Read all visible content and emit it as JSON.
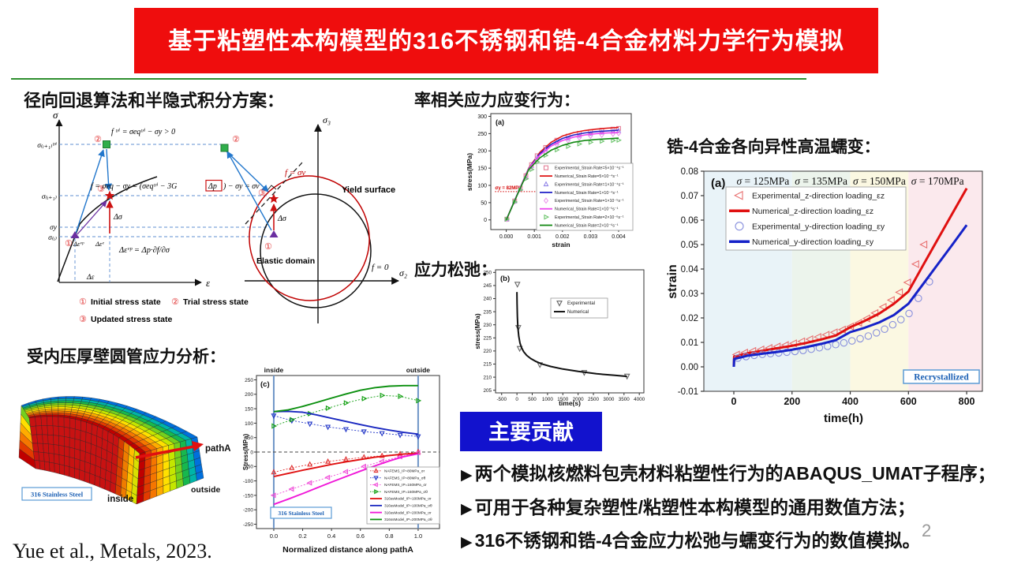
{
  "title": {
    "text": "基于粘塑性本构模型的316不锈钢和锆-4合金材料力学行为模拟"
  },
  "colors": {
    "banner_red": "#ef0d0d",
    "rule_green": "#2f8f2f",
    "contrib_blue": "#1212cd",
    "accent_red": "#cc1111",
    "accent_blue": "#2277cc",
    "accent_purple": "#6a2fa0",
    "accent_green": "#2fae4a",
    "box_blue": "#5b9bd5",
    "box_text_blue": "#1a5fb4"
  },
  "sections": {
    "s1": "径向回退算法和半隐式积分方案：",
    "s2": "受内压厚壁圆管应力分析：",
    "s3": "率相关应力应变行为：",
    "s4": "应力松弛：",
    "s5": "锆-4合金各向异性高温蠕变："
  },
  "diagram": {
    "sigma_axis": "σ",
    "eps_axis": "ε",
    "sigma_tri": "σ₍ᵢ₊₁₎ᵗʳⁱ",
    "sigma_next": "σ₍ᵢ₊₁₎",
    "sigma_yield": "σy",
    "sigma_init": "σ₍ᵢ₎",
    "f_trial": "f ᵗʳⁱ = σeqᵗʳⁱ − σy > 0",
    "f_update_a": "f = σeq − σy = (σeqᵗʳⁱ − 3G",
    "f_update_b": "Δp",
    "f_update_c": ") − σy = σv",
    "flow_rule": "Δεᵛᵖ = Δp·∂f/∂σ",
    "d_eps_vp": "Δεᵛᵖ",
    "d_eps_e": "Δεᵉ",
    "d_eps": "Δε",
    "d_sigma": "Δσ",
    "sigma3": "σ₃",
    "sigma2": "σ₂",
    "f_sv": "f = σv",
    "f_zero": "f = 0",
    "yield_surface": "Yield surface",
    "elastic_domain": "Elastic domain",
    "n1": "①",
    "n2": "②",
    "n3": "③",
    "legend1": "Initial stress state",
    "legend2": "Trial stress state",
    "legend3": "Updated stress state"
  },
  "fem": {
    "path_label": "pathA",
    "inside": "inside",
    "outside": "outside",
    "material": "316 Stainless Steel"
  },
  "contributions": {
    "banner": "主要贡献",
    "bullet_icon": "▶",
    "bullets": [
      "两个模拟核燃料包壳材料粘塑性行为的ABAQUS_UMAT子程序；",
      "可用于各种复杂塑性/粘塑性本构模型的通用数值方法；",
      "316不锈钢和锆-4合金应力松弛与蠕变行为的数值模拟。"
    ]
  },
  "citation": "Yue et al., Metals, 2023.",
  "page_number": "2",
  "chart_data": [
    {
      "id": "rate-dependent-stress-strain",
      "type": "line",
      "panel": "(a)",
      "xlabel": "strain",
      "ylabel": "stress(MPa)",
      "xlim": [
        -0.00055,
        0.00445
      ],
      "ylim": [
        -28,
        308
      ],
      "xticks": [
        0,
        0.001,
        0.002,
        0.003,
        0.004
      ],
      "xtick_labels": [
        "0.000",
        "0.001",
        "0.002",
        "0.003",
        "0.004"
      ],
      "yticks": [
        0,
        50,
        100,
        150,
        200,
        250,
        300
      ],
      "yield_annotation": {
        "label": "σy = 82MPa",
        "y": 82,
        "x0": -0.0004,
        "x1": 0.0012,
        "color": "#d40000"
      },
      "series": [
        {
          "label": "Experimental_Strain Rate=5×10⁻⁴s⁻¹",
          "kind": "marker",
          "marker": "square",
          "color": "#e48098",
          "x": [
            2e-05,
            0.0003,
            0.0005,
            0.0007,
            0.0009,
            0.0011,
            0.0014,
            0.0018,
            0.0022,
            0.0026,
            0.003,
            0.0034,
            0.0038,
            0.004
          ],
          "y": [
            2,
            55,
            92,
            128,
            160,
            186,
            210,
            231,
            243,
            251,
            256,
            260,
            263,
            265
          ]
        },
        {
          "label": "Numerical_Strain Rate=5×10⁻⁴s⁻¹",
          "kind": "line",
          "color": "#e01818",
          "x": [
            0,
            0.0004,
            0.0008,
            0.0012,
            0.0016,
            0.002,
            0.0024,
            0.0028,
            0.0032,
            0.0036,
            0.004
          ],
          "y": [
            0,
            75,
            150,
            196,
            225,
            243,
            253,
            259,
            263,
            266,
            268
          ]
        },
        {
          "label": "Experimental_Strain Rate=1×10⁻⁴s⁻¹",
          "kind": "marker",
          "marker": "triangle-up",
          "color": "#9184e8",
          "x": [
            2e-05,
            0.0003,
            0.0005,
            0.0007,
            0.0009,
            0.0011,
            0.0014,
            0.0018,
            0.0022,
            0.0026,
            0.003,
            0.0034,
            0.0038,
            0.004
          ],
          "y": [
            2,
            54,
            90,
            125,
            156,
            181,
            204,
            224,
            236,
            244,
            249,
            253,
            256,
            258
          ]
        },
        {
          "label": "Numerical_Strain Rate=1×10⁻⁴s⁻¹",
          "kind": "line",
          "color": "#2424c8",
          "x": [
            0,
            0.0004,
            0.0008,
            0.0012,
            0.0016,
            0.002,
            0.0024,
            0.0028,
            0.0032,
            0.0036,
            0.004
          ],
          "y": [
            0,
            75,
            149,
            192,
            219,
            236,
            246,
            252,
            256,
            258,
            260
          ]
        },
        {
          "label": "Experimental_Strain Rate=1×10⁻⁵s⁻¹",
          "kind": "marker",
          "marker": "diamond",
          "color": "#ec9aec",
          "x": [
            2e-05,
            0.0003,
            0.0005,
            0.0007,
            0.0009,
            0.0011,
            0.0014,
            0.0018,
            0.0022,
            0.0026,
            0.003,
            0.0034,
            0.0038,
            0.004
          ],
          "y": [
            2,
            53,
            89,
            123,
            153,
            177,
            199,
            218,
            230,
            238,
            243,
            246,
            249,
            251
          ]
        },
        {
          "label": "Numerical_Strain Rate=1×10⁻⁵s⁻¹",
          "kind": "line",
          "color": "#ee46ee",
          "x": [
            0,
            0.0004,
            0.0008,
            0.0012,
            0.0016,
            0.002,
            0.0024,
            0.0028,
            0.0032,
            0.0036,
            0.004
          ],
          "y": [
            0,
            74,
            148,
            188,
            214,
            230,
            240,
            246,
            250,
            252,
            253
          ]
        },
        {
          "label": "Experimental_Strain Rate=2×10⁻⁶s⁻¹",
          "kind": "marker",
          "marker": "triangle-right",
          "color": "#6cc46c",
          "x": [
            2e-05,
            0.0003,
            0.0005,
            0.0007,
            0.0009,
            0.0011,
            0.0014,
            0.0018,
            0.0022,
            0.0026,
            0.003,
            0.0034,
            0.0038,
            0.004
          ],
          "y": [
            2,
            52,
            87,
            119,
            146,
            168,
            187,
            203,
            213,
            220,
            225,
            228,
            230,
            231
          ]
        },
        {
          "label": "Numerical_Strain Rate=2×10⁻⁶s⁻¹",
          "kind": "line",
          "color": "#128812",
          "x": [
            0,
            0.0004,
            0.0008,
            0.0012,
            0.0016,
            0.002,
            0.0024,
            0.0028,
            0.0032,
            0.0036,
            0.004
          ],
          "y": [
            0,
            74,
            146,
            180,
            202,
            216,
            225,
            230,
            233,
            235,
            237
          ]
        }
      ]
    },
    {
      "id": "stress-relaxation",
      "type": "line",
      "panel": "(b)",
      "xlabel": "time(s)",
      "ylabel": "stress(MPa)",
      "xlim": [
        -700,
        4150
      ],
      "ylim": [
        204,
        251
      ],
      "xticks": [
        -500,
        0,
        500,
        1000,
        1500,
        2000,
        2500,
        3000,
        3500,
        4000
      ],
      "yticks": [
        205,
        210,
        215,
        220,
        225,
        230,
        235,
        240,
        245,
        250
      ],
      "series": [
        {
          "label": "Experimental",
          "kind": "marker",
          "marker": "triangle-down",
          "color": "#666666",
          "x": [
            15,
            45,
            90,
            750,
            2200,
            3600
          ],
          "y": [
            245.5,
            229,
            221,
            214.8,
            211.8,
            210.4
          ]
        },
        {
          "label": "Numerical",
          "kind": "line",
          "color": "#111111",
          "x": [
            0,
            5,
            15,
            30,
            60,
            100,
            150,
            220,
            320,
            450,
            600,
            800,
            1100,
            1500,
            2000,
            2600,
            3200,
            3600
          ],
          "y": [
            242.5,
            238,
            233,
            229,
            225.5,
            223,
            221.3,
            219.7,
            218.3,
            217.1,
            216.1,
            215.1,
            214.1,
            213.1,
            212.2,
            211.3,
            210.7,
            210.3
          ]
        }
      ]
    },
    {
      "id": "zr4-anisotropic-creep",
      "type": "line",
      "panel": "(a)",
      "xlabel": "time(h)",
      "ylabel": "strain",
      "xlim": [
        -103,
        854
      ],
      "ylim": [
        -0.01,
        0.08
      ],
      "xticks": [
        0,
        200,
        400,
        600,
        800
      ],
      "yticks": [
        -0.01,
        0,
        0.01,
        0.02,
        0.03,
        0.04,
        0.05,
        0.06,
        0.07,
        0.08
      ],
      "regions": [
        {
          "x0": -103,
          "x1": 200,
          "color": "#e9f3f8"
        },
        {
          "x0": 200,
          "x1": 400,
          "color": "#ecf4ec"
        },
        {
          "x0": 400,
          "x1": 600,
          "color": "#fbf8e2"
        },
        {
          "x0": 600,
          "x1": 854,
          "color": "#fbe9ed"
        }
      ],
      "stress_annotations": [
        "σ = 125MPa",
        "σ = 135MPa",
        "σ = 150MPa",
        "σ = 170MPa"
      ],
      "annotation_centers": [
        100,
        300,
        500,
        700
      ],
      "recrystallized_label": "Recrystallized",
      "series": [
        {
          "label": "Experimental_z-direction loading_εz",
          "kind": "marker",
          "marker": "triangle-left",
          "color": "#e87070",
          "x": [
            10,
            38,
            66,
            94,
            122,
            150,
            178,
            206,
            234,
            262,
            290,
            318,
            346,
            374,
            402,
            430,
            458,
            486,
            514,
            542,
            570,
            598,
            626,
            654
          ],
          "y": [
            0.005,
            0.0058,
            0.0065,
            0.0071,
            0.0077,
            0.0083,
            0.0089,
            0.0096,
            0.0104,
            0.0113,
            0.0122,
            0.0131,
            0.0141,
            0.0152,
            0.0165,
            0.018,
            0.0198,
            0.022,
            0.0245,
            0.0273,
            0.0305,
            0.0345,
            0.042,
            0.05
          ]
        },
        {
          "label": "Numerical_z-direction loading_εz",
          "kind": "line",
          "color": "#e01010",
          "x": [
            0,
            1,
            50,
            100,
            150,
            200,
            250,
            300,
            350,
            400,
            450,
            500,
            550,
            600,
            650,
            700,
            750,
            800
          ],
          "y": [
            0,
            0.0042,
            0.0056,
            0.0066,
            0.0076,
            0.0086,
            0.0098,
            0.0112,
            0.0128,
            0.0162,
            0.0188,
            0.0218,
            0.0258,
            0.0308,
            0.0415,
            0.052,
            0.0625,
            0.073
          ]
        },
        {
          "label": "Experimental_y-direction loading_εy",
          "kind": "marker",
          "marker": "circle",
          "color": "#8890dd",
          "x": [
            14,
            42,
            70,
            98,
            126,
            154,
            182,
            210,
            238,
            266,
            294,
            322,
            350,
            378,
            406,
            434,
            462,
            490,
            518,
            546,
            574,
            602,
            634,
            672
          ],
          "y": [
            0.0036,
            0.0042,
            0.0047,
            0.0051,
            0.0054,
            0.0057,
            0.006,
            0.0063,
            0.0067,
            0.0072,
            0.0078,
            0.0084,
            0.0091,
            0.0098,
            0.0106,
            0.0115,
            0.0126,
            0.0139,
            0.0154,
            0.0172,
            0.0193,
            0.0218,
            0.028,
            0.0348
          ]
        },
        {
          "label": "Numerical_y-direction loading_εy",
          "kind": "line",
          "color": "#1522c8",
          "x": [
            0,
            1,
            50,
            100,
            150,
            200,
            250,
            300,
            350,
            400,
            450,
            500,
            550,
            600,
            650,
            700,
            750,
            800
          ],
          "y": [
            0,
            0.0032,
            0.0046,
            0.0054,
            0.0061,
            0.007,
            0.0081,
            0.0094,
            0.0109,
            0.0142,
            0.016,
            0.0182,
            0.0212,
            0.0258,
            0.0338,
            0.0418,
            0.0498,
            0.058
          ]
        }
      ]
    },
    {
      "id": "pathA-stress-distribution",
      "type": "line",
      "panel": "(c)",
      "xlabel": "Normalized distance along pathA",
      "ylabel": "Stress(MPa)",
      "xlim": [
        -0.12,
        1.148
      ],
      "ylim": [
        -265,
        265
      ],
      "xticks": [
        0,
        0.2,
        0.4,
        0.6,
        0.8,
        1
      ],
      "xtick_labels": [
        "0.0",
        "0.2",
        "0.4",
        "0.6",
        "0.8",
        "1.0"
      ],
      "yticks": [
        -250,
        -200,
        -150,
        -100,
        -50,
        0,
        50,
        100,
        150,
        200,
        250
      ],
      "inside_label": "inside",
      "outside_label": "outside",
      "material_label": "316 Stainless Steel",
      "series": [
        {
          "label": "NAFEMS_IP=80MPa_σr",
          "kind": "both",
          "marker": "triangle-up",
          "color": "#e03030",
          "x": [
            0,
            0.125,
            0.25,
            0.375,
            0.5,
            0.625,
            0.75,
            0.875,
            1
          ],
          "y": [
            -70,
            -55,
            -43,
            -33,
            -25,
            -18,
            -13,
            -7,
            0
          ]
        },
        {
          "label": "NAFEMS_IP=80MPa_σθ",
          "kind": "both",
          "marker": "triangle-down",
          "color": "#2438c8",
          "x": [
            0,
            0.125,
            0.25,
            0.375,
            0.5,
            0.625,
            0.75,
            0.875,
            1
          ],
          "y": [
            126,
            109,
            98,
            87,
            79,
            71,
            65,
            59,
            54
          ]
        },
        {
          "label": "NAFEMS_IP=160MPa_σr",
          "kind": "both",
          "marker": "triangle-left",
          "color": "#f04cd8",
          "x": [
            0,
            0.125,
            0.25,
            0.375,
            0.5,
            0.625,
            0.75,
            0.875,
            1
          ],
          "y": [
            -150,
            -128,
            -107,
            -88,
            -68,
            -50,
            -32,
            -16,
            -2
          ]
        },
        {
          "label": "NAFEMS_IP=160MPa_σθ",
          "kind": "both",
          "marker": "triangle-right",
          "color": "#12a012",
          "x": [
            0,
            0.125,
            0.25,
            0.375,
            0.5,
            0.625,
            0.75,
            0.875,
            1
          ],
          "y": [
            90,
            112,
            133,
            152,
            170,
            185,
            196,
            193,
            178
          ]
        },
        {
          "label": "316ssModel_IP=100MPa_σr",
          "kind": "line",
          "color": "#e01010",
          "x": [
            0,
            0.1,
            0.2,
            0.3,
            0.4,
            0.5,
            0.6,
            0.7,
            0.8,
            0.9,
            1
          ],
          "y": [
            -85,
            -74,
            -63,
            -53,
            -43,
            -34,
            -26,
            -18,
            -12,
            -7,
            -5
          ]
        },
        {
          "label": "316ssModel_IP=100MPa_σθ",
          "kind": "line",
          "color": "#1a28c0",
          "x": [
            0,
            0.1,
            0.2,
            0.3,
            0.4,
            0.5,
            0.6,
            0.7,
            0.8,
            0.9,
            1
          ],
          "y": [
            140,
            141,
            138,
            128,
            117,
            106,
            95,
            85,
            76,
            68,
            62
          ]
        },
        {
          "label": "316ssModel_IP=200MPa_σr",
          "kind": "line",
          "color": "#f018d8",
          "x": [
            0,
            0.1,
            0.2,
            0.3,
            0.4,
            0.5,
            0.6,
            0.7,
            0.8,
            0.9,
            1
          ],
          "y": [
            -181,
            -163,
            -144,
            -124,
            -104,
            -85,
            -66,
            -48,
            -31,
            -16,
            -6
          ]
        },
        {
          "label": "316ssModel_IP=200MPa_σθ",
          "kind": "line",
          "color": "#0c9010",
          "x": [
            0,
            0.1,
            0.2,
            0.3,
            0.4,
            0.5,
            0.6,
            0.7,
            0.8,
            0.9,
            1
          ],
          "y": [
            140,
            146,
            158,
            172,
            187,
            201,
            214,
            223,
            228,
            230,
            230
          ]
        }
      ]
    }
  ]
}
